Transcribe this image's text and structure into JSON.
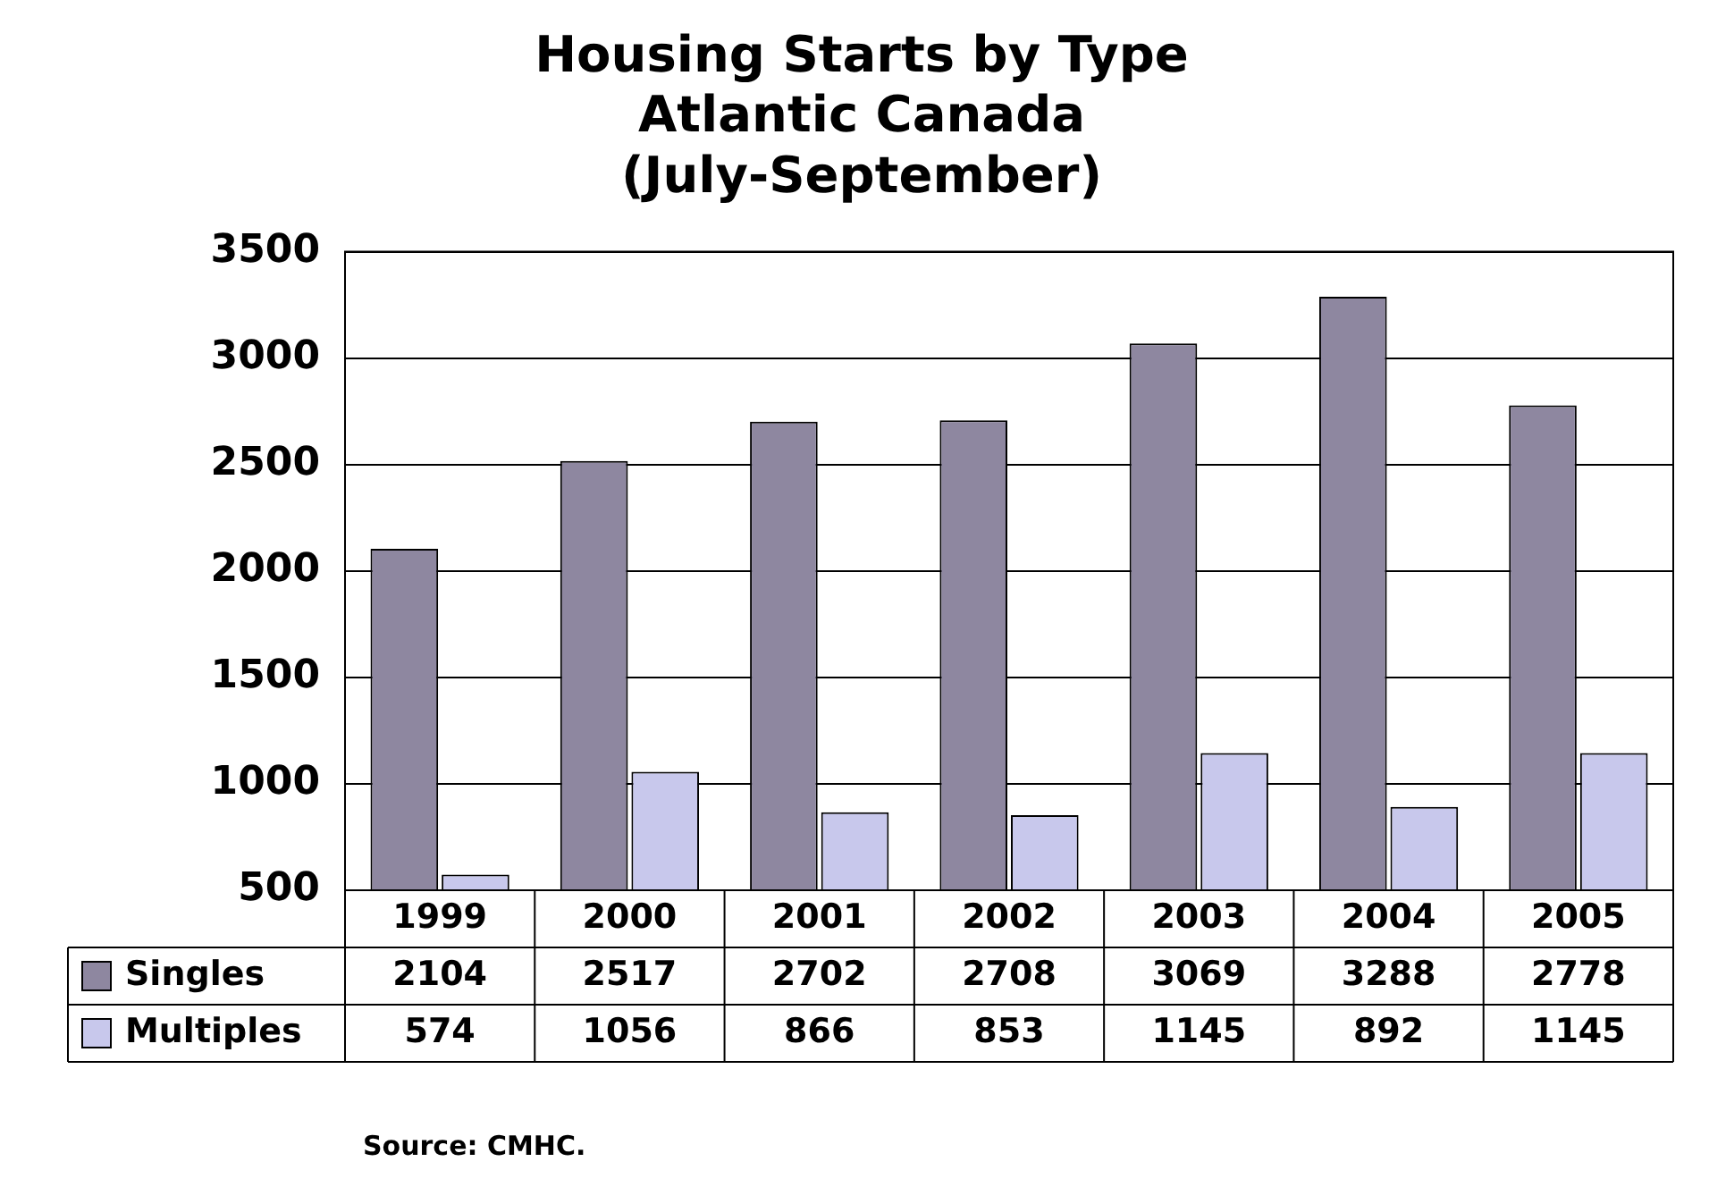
{
  "chart_data": {
    "type": "bar",
    "title": "Housing Starts by Type\nAtlantic Canada\n(July-September)",
    "categories": [
      "1999",
      "2000",
      "2001",
      "2002",
      "2003",
      "2004",
      "2005"
    ],
    "series": [
      {
        "name": "Singles",
        "color": "#8e87a0",
        "values": [
          2104,
          2517,
          2702,
          2708,
          3069,
          3288,
          2778
        ]
      },
      {
        "name": "Multiples",
        "color": "#c8c8ec",
        "values": [
          574,
          1056,
          866,
          853,
          1145,
          892,
          1145
        ]
      }
    ],
    "ylim": [
      500,
      3500
    ],
    "yticks": [
      500,
      1000,
      1500,
      2000,
      2500,
      3000,
      3500
    ],
    "grid": "y",
    "legend": "bottom",
    "data_labels": true,
    "annotations": [
      "Source: CMHC."
    ]
  }
}
